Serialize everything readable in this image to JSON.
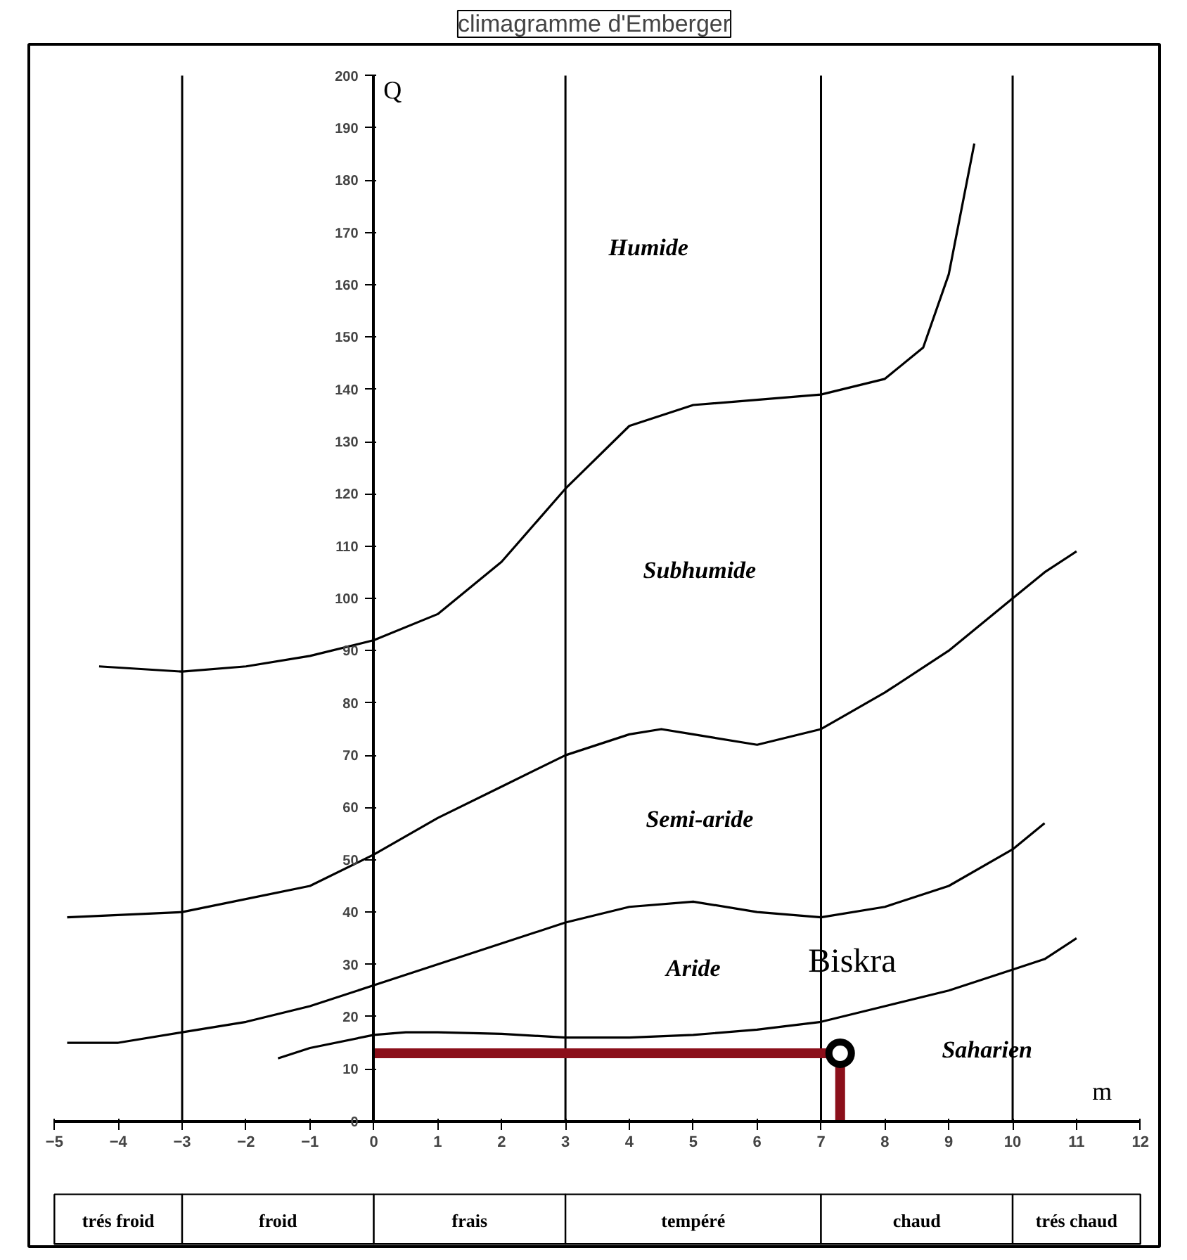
{
  "chart_data": {
    "type": "line",
    "title": "climagramme d'Emberger",
    "xlabel": "m",
    "ylabel": "Q",
    "xlim": [
      -5.4,
      12.3
    ],
    "ylim": [
      -24,
      206
    ],
    "xticks": [
      -5,
      -4,
      -3,
      -2,
      -1,
      0,
      1,
      2,
      3,
      4,
      5,
      6,
      7,
      8,
      9,
      10,
      11,
      12
    ],
    "yticks": [
      0,
      10,
      20,
      30,
      40,
      50,
      60,
      70,
      80,
      90,
      100,
      110,
      120,
      130,
      140,
      150,
      160,
      170,
      180,
      190,
      200
    ],
    "grid": false,
    "line_style": "solid",
    "series": [
      {
        "color": "#000000",
        "x": [
          -4.3,
          -3,
          -2,
          -1,
          0,
          1,
          2,
          3,
          4,
          5,
          6,
          7,
          8,
          8.6,
          9,
          9.4
        ],
        "values": [
          87,
          86,
          87,
          89,
          92,
          97,
          107,
          121,
          133,
          137,
          138,
          139,
          142,
          148,
          162,
          187
        ]
      },
      {
        "color": "#000000",
        "x": [
          -4.8,
          -3,
          -1,
          0,
          1,
          2,
          3,
          4,
          4.5,
          5,
          6,
          7,
          8,
          9,
          10,
          10.5,
          11
        ],
        "values": [
          39,
          40,
          45,
          51,
          58,
          64,
          70,
          74,
          75,
          74,
          72,
          75,
          82,
          90,
          100,
          105,
          109
        ]
      },
      {
        "color": "#000000",
        "x": [
          -4.8,
          -4,
          -3,
          -2,
          -1,
          0,
          1,
          2,
          3,
          4,
          5,
          6,
          7,
          8,
          9,
          10,
          10.5
        ],
        "values": [
          15,
          15,
          17,
          19,
          22,
          26,
          30,
          34,
          38,
          41,
          42,
          40,
          39,
          41,
          45,
          52,
          57
        ]
      },
      {
        "color": "#000000",
        "x": [
          -1.5,
          -1,
          0,
          0.5,
          1,
          2,
          3,
          4,
          5,
          6,
          7,
          8,
          9,
          10,
          10.5,
          11
        ],
        "values": [
          12,
          14,
          16.5,
          17,
          17,
          16.7,
          16,
          16,
          16.5,
          17.5,
          19,
          22,
          25,
          29,
          31,
          35
        ]
      },
      {
        "color": "#8b0f1a",
        "x": [
          0,
          7.3,
          7.3
        ],
        "values": [
          13,
          13,
          0
        ]
      },
      {
        "type": "scatter",
        "name": "Biskra",
        "marker": "circle",
        "color": "#000000",
        "x": [
          7.3
        ],
        "values": [
          13
        ]
      }
    ],
    "ref_lines": [
      {
        "axis": "x",
        "value": -3
      },
      {
        "axis": "x",
        "value": 3
      },
      {
        "axis": "x",
        "value": 7
      },
      {
        "axis": "x",
        "value": 10
      }
    ],
    "bands": [
      {
        "axis": "x",
        "from": -5,
        "to": -3,
        "label": "trés froid",
        "color": "#ffffff"
      },
      {
        "axis": "x",
        "from": -3,
        "to": 0,
        "label": "froid",
        "color": "#ffffff"
      },
      {
        "axis": "x",
        "from": 0,
        "to": 3,
        "label": "frais",
        "color": "#ffffff"
      },
      {
        "axis": "x",
        "from": 3,
        "to": 7,
        "label": "tempéré",
        "color": "#ffffff"
      },
      {
        "axis": "x",
        "from": 7,
        "to": 10,
        "label": "chaud",
        "color": "#ffffff"
      },
      {
        "axis": "x",
        "from": 10,
        "to": 12,
        "label": "trés chaud",
        "color": "#ffffff"
      }
    ],
    "annotations": [
      "Humide",
      "Subhumide",
      "Semi-aride",
      "Aride",
      "Saharien"
    ]
  }
}
